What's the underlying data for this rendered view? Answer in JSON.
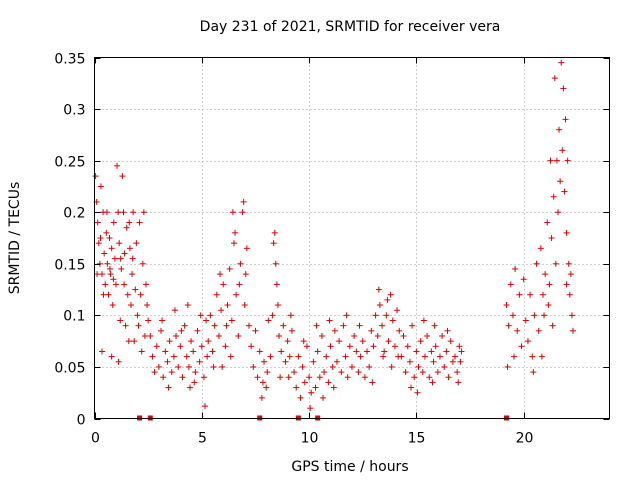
{
  "chart_data": {
    "type": "scatter",
    "title": "Day 231 of 2021, SRMTID for receiver vera",
    "xlabel": "GPS time / hours",
    "ylabel": "SRMTID / TECUs",
    "xlim": [
      0,
      24
    ],
    "ylim": [
      0,
      0.35
    ],
    "xticks": [
      0,
      5,
      10,
      15,
      20
    ],
    "xtick_labels": [
      "0",
      "5",
      "10",
      "15",
      "20"
    ],
    "yticks": [
      0,
      0.05,
      0.1,
      0.15,
      0.2,
      0.25,
      0.3,
      0.35
    ],
    "ytick_labels": [
      "0",
      "0.05",
      "0.1",
      "0.15",
      "0.2",
      "0.25",
      "0.3",
      "0.35"
    ],
    "grid": true,
    "marker": "+",
    "color": "#e00000",
    "series": [
      {
        "name": "SRMTID",
        "points": [
          [
            0.05,
            0.235
          ],
          [
            0.1,
            0.21
          ],
          [
            0.15,
            0.19
          ],
          [
            0.2,
            0.17
          ],
          [
            0.25,
            0.15
          ],
          [
            0.3,
            0.225
          ],
          [
            0.35,
            0.14
          ],
          [
            0.4,
            0.2
          ],
          [
            0.45,
            0.16
          ],
          [
            0.5,
            0.13
          ],
          [
            0.55,
            0.18
          ],
          [
            0.6,
            0.15
          ],
          [
            0.65,
            0.12
          ],
          [
            0.7,
            0.175
          ],
          [
            0.75,
            0.14
          ],
          [
            0.8,
            0.165
          ],
          [
            0.85,
            0.11
          ],
          [
            0.9,
            0.19
          ],
          [
            0.95,
            0.155
          ],
          [
            1.0,
            0.13
          ],
          [
            1.05,
            0.245
          ],
          [
            1.1,
            0.2
          ],
          [
            1.15,
            0.17
          ],
          [
            1.2,
            0.095
          ],
          [
            1.25,
            0.145
          ],
          [
            1.3,
            0.235
          ],
          [
            1.35,
            0.2
          ],
          [
            1.4,
            0.16
          ],
          [
            1.45,
            0.09
          ],
          [
            1.5,
            0.185
          ],
          [
            1.55,
            0.12
          ],
          [
            1.6,
            0.075
          ],
          [
            1.65,
            0.165
          ],
          [
            1.7,
            0.11
          ],
          [
            1.75,
            0.14
          ],
          [
            1.8,
            0.2
          ],
          [
            1.85,
            0.075
          ],
          [
            1.9,
            0.125
          ],
          [
            1.95,
            0.17
          ],
          [
            2.0,
            0.1
          ],
          [
            2.05,
            0.09
          ],
          [
            2.1,
            0.19
          ],
          [
            2.15,
            0.12
          ],
          [
            2.2,
            0.065
          ],
          [
            2.25,
            0.15
          ],
          [
            2.3,
            0.2
          ],
          [
            2.35,
            0.08
          ],
          [
            2.4,
            0.13
          ],
          [
            2.45,
            0.11
          ],
          [
            2.5,
            0.095
          ],
          [
            0.12,
            0.14
          ],
          [
            0.28,
            0.175
          ],
          [
            0.42,
            0.12
          ],
          [
            0.58,
            0.2
          ],
          [
            0.72,
            0.145
          ],
          [
            0.88,
            0.135
          ],
          [
            1.22,
            0.155
          ],
          [
            1.38,
            0.13
          ],
          [
            1.62,
            0.19
          ],
          [
            1.78,
            0.155
          ],
          [
            0.35,
            0.065
          ],
          [
            0.8,
            0.06
          ],
          [
            1.12,
            0.055
          ],
          [
            2.6,
            0.08
          ],
          [
            2.7,
            0.06
          ],
          [
            2.8,
            0.045
          ],
          [
            2.9,
            0.07
          ],
          [
            3.0,
            0.05
          ],
          [
            3.1,
            0.085
          ],
          [
            3.2,
            0.04
          ],
          [
            3.3,
            0.065
          ],
          [
            3.4,
            0.055
          ],
          [
            3.5,
            0.075
          ],
          [
            3.6,
            0.045
          ],
          [
            3.7,
            0.06
          ],
          [
            3.8,
            0.08
          ],
          [
            3.9,
            0.05
          ],
          [
            4.0,
            0.07
          ],
          [
            4.1,
            0.04
          ],
          [
            4.2,
            0.09
          ],
          [
            4.3,
            0.06
          ],
          [
            4.4,
            0.05
          ],
          [
            4.5,
            0.075
          ],
          [
            4.6,
            0.065
          ],
          [
            4.7,
            0.045
          ],
          [
            4.8,
            0.085
          ],
          [
            4.9,
            0.055
          ],
          [
            5.0,
            0.07
          ],
          [
            5.1,
            0.04
          ],
          [
            5.2,
            0.095
          ],
          [
            3.15,
            0.095
          ],
          [
            3.45,
            0.03
          ],
          [
            3.75,
            0.105
          ],
          [
            4.05,
            0.085
          ],
          [
            4.35,
            0.11
          ],
          [
            4.65,
            0.035
          ],
          [
            4.95,
            0.1
          ],
          [
            5.25,
            0.06
          ],
          [
            5.15,
            0.012
          ],
          [
            4.45,
            0.03
          ],
          [
            5.3,
            0.075
          ],
          [
            5.4,
            0.1
          ],
          [
            5.5,
            0.065
          ],
          [
            5.6,
            0.09
          ],
          [
            5.7,
            0.12
          ],
          [
            5.8,
            0.08
          ],
          [
            5.9,
            0.105
          ],
          [
            6.0,
            0.13
          ],
          [
            6.1,
            0.07
          ],
          [
            6.2,
            0.11
          ],
          [
            6.3,
            0.145
          ],
          [
            6.4,
            0.095
          ],
          [
            6.5,
            0.17
          ],
          [
            6.6,
            0.12
          ],
          [
            6.7,
            0.08
          ],
          [
            6.8,
            0.15
          ],
          [
            6.9,
            0.2
          ],
          [
            7.0,
            0.11
          ],
          [
            7.1,
            0.165
          ],
          [
            7.2,
            0.09
          ],
          [
            6.45,
            0.2
          ],
          [
            6.55,
            0.18
          ],
          [
            6.75,
            0.13
          ],
          [
            6.95,
            0.21
          ],
          [
            7.05,
            0.14
          ],
          [
            6.15,
            0.09
          ],
          [
            5.85,
            0.14
          ],
          [
            5.55,
            0.05
          ],
          [
            5.95,
            0.05
          ],
          [
            6.35,
            0.06
          ],
          [
            7.3,
            0.07
          ],
          [
            7.4,
            0.05
          ],
          [
            7.5,
            0.085
          ],
          [
            7.6,
            0.04
          ],
          [
            7.7,
            0.065
          ],
          [
            7.8,
            0.02
          ],
          [
            7.9,
            0.055
          ],
          [
            8.0,
            0.03
          ],
          [
            8.1,
            0.095
          ],
          [
            8.2,
            0.06
          ],
          [
            8.3,
            0.1
          ],
          [
            8.4,
            0.18
          ],
          [
            8.5,
            0.13
          ],
          [
            8.6,
            0.08
          ],
          [
            8.7,
            0.065
          ],
          [
            8.8,
            0.09
          ],
          [
            8.9,
            0.055
          ],
          [
            9.0,
            0.075
          ],
          [
            9.1,
            0.06
          ],
          [
            9.2,
            0.085
          ],
          [
            8.35,
            0.17
          ],
          [
            8.45,
            0.15
          ],
          [
            8.55,
            0.11
          ],
          [
            7.85,
            0.035
          ],
          [
            8.05,
            0.045
          ],
          [
            9.05,
            0.04
          ],
          [
            9.15,
            0.1
          ],
          [
            8.65,
            0.04
          ],
          [
            9.3,
            0.045
          ],
          [
            9.4,
            0.03
          ],
          [
            9.5,
            0.06
          ],
          [
            9.6,
            0.02
          ],
          [
            9.7,
            0.05
          ],
          [
            9.8,
            0.035
          ],
          [
            9.9,
            0.07
          ],
          [
            10.0,
            0.04
          ],
          [
            10.1,
            0.025
          ],
          [
            10.2,
            0.055
          ],
          [
            10.3,
            0.03
          ],
          [
            10.4,
            0.065
          ],
          [
            10.5,
            0.04
          ],
          [
            10.6,
            0.08
          ],
          [
            10.7,
            0.045
          ],
          [
            10.8,
            0.06
          ],
          [
            10.9,
            0.035
          ],
          [
            11.0,
            0.07
          ],
          [
            11.1,
            0.05
          ],
          [
            11.2,
            0.085
          ],
          [
            9.75,
            0.075
          ],
          [
            10.05,
            0.01
          ],
          [
            10.35,
            0.09
          ],
          [
            10.65,
            0.02
          ],
          [
            10.95,
            0.095
          ],
          [
            11.15,
            0.03
          ],
          [
            11.3,
            0.055
          ],
          [
            11.4,
            0.075
          ],
          [
            11.5,
            0.045
          ],
          [
            11.6,
            0.09
          ],
          [
            11.7,
            0.06
          ],
          [
            11.8,
            0.04
          ],
          [
            11.9,
            0.07
          ],
          [
            12.0,
            0.05
          ],
          [
            12.1,
            0.08
          ],
          [
            12.2,
            0.065
          ],
          [
            12.3,
            0.045
          ],
          [
            12.4,
            0.06
          ],
          [
            12.5,
            0.075
          ],
          [
            12.6,
            0.04
          ],
          [
            12.7,
            0.065
          ],
          [
            12.8,
            0.05
          ],
          [
            12.9,
            0.085
          ],
          [
            13.0,
            0.07
          ],
          [
            13.1,
            0.1
          ],
          [
            13.2,
            0.08
          ],
          [
            13.3,
            0.11
          ],
          [
            13.4,
            0.09
          ],
          [
            13.5,
            0.065
          ],
          [
            13.6,
            0.1
          ],
          [
            13.7,
            0.075
          ],
          [
            13.8,
            0.12
          ],
          [
            13.9,
            0.095
          ],
          [
            14.0,
            0.07
          ],
          [
            14.1,
            0.105
          ],
          [
            14.2,
            0.085
          ],
          [
            13.25,
            0.125
          ],
          [
            13.45,
            0.06
          ],
          [
            13.65,
            0.115
          ],
          [
            13.85,
            0.05
          ],
          [
            14.15,
            0.06
          ],
          [
            12.35,
            0.09
          ],
          [
            11.75,
            0.1
          ],
          [
            12.95,
            0.035
          ],
          [
            14.3,
            0.06
          ],
          [
            14.4,
            0.08
          ],
          [
            14.5,
            0.045
          ],
          [
            14.6,
            0.07
          ],
          [
            14.7,
            0.055
          ],
          [
            14.8,
            0.09
          ],
          [
            14.9,
            0.04
          ],
          [
            15.0,
            0.065
          ],
          [
            15.1,
            0.05
          ],
          [
            15.2,
            0.075
          ],
          [
            15.3,
            0.045
          ],
          [
            15.4,
            0.06
          ],
          [
            15.5,
            0.08
          ],
          [
            15.6,
            0.04
          ],
          [
            15.7,
            0.065
          ],
          [
            15.8,
            0.055
          ],
          [
            15.9,
            0.07
          ],
          [
            16.0,
            0.045
          ],
          [
            16.1,
            0.06
          ],
          [
            16.2,
            0.08
          ],
          [
            16.3,
            0.05
          ],
          [
            16.4,
            0.065
          ],
          [
            16.5,
            0.04
          ],
          [
            16.6,
            0.075
          ],
          [
            16.7,
            0.055
          ],
          [
            16.8,
            0.06
          ],
          [
            16.9,
            0.045
          ],
          [
            17.0,
            0.07
          ],
          [
            17.05,
            0.055
          ],
          [
            17.1,
            0.065
          ],
          [
            14.75,
            0.03
          ],
          [
            15.05,
            0.025
          ],
          [
            15.35,
            0.095
          ],
          [
            15.85,
            0.09
          ],
          [
            16.45,
            0.085
          ],
          [
            16.95,
            0.035
          ],
          [
            15.75,
            0.035
          ],
          [
            19.2,
            0.11
          ],
          [
            19.3,
            0.09
          ],
          [
            19.4,
            0.13
          ],
          [
            19.5,
            0.1
          ],
          [
            19.6,
            0.145
          ],
          [
            19.7,
            0.085
          ],
          [
            19.8,
            0.12
          ],
          [
            19.9,
            0.07
          ],
          [
            20.0,
            0.135
          ],
          [
            20.1,
            0.095
          ],
          [
            20.2,
            0.075
          ],
          [
            20.3,
            0.12
          ],
          [
            20.4,
            0.06
          ],
          [
            20.5,
            0.1
          ],
          [
            20.6,
            0.15
          ],
          [
            20.7,
            0.085
          ],
          [
            20.8,
            0.165
          ],
          [
            20.9,
            0.12
          ],
          [
            21.0,
            0.14
          ],
          [
            21.1,
            0.19
          ],
          [
            21.2,
            0.13
          ],
          [
            21.3,
            0.175
          ],
          [
            21.4,
            0.215
          ],
          [
            21.5,
            0.15
          ],
          [
            21.55,
            0.25
          ],
          [
            21.6,
            0.2
          ],
          [
            21.65,
            0.28
          ],
          [
            21.7,
            0.23
          ],
          [
            21.75,
            0.345
          ],
          [
            21.8,
            0.26
          ],
          [
            21.85,
            0.32
          ],
          [
            21.9,
            0.22
          ],
          [
            21.95,
            0.29
          ],
          [
            22.0,
            0.18
          ],
          [
            22.05,
            0.25
          ],
          [
            22.1,
            0.15
          ],
          [
            22.15,
            0.12
          ],
          [
            22.2,
            0.14
          ],
          [
            22.25,
            0.1
          ],
          [
            22.3,
            0.085
          ],
          [
            19.25,
            0.05
          ],
          [
            19.55,
            0.06
          ],
          [
            20.45,
            0.045
          ],
          [
            20.85,
            0.06
          ],
          [
            21.35,
            0.09
          ],
          [
            21.45,
            0.33
          ],
          [
            21.25,
            0.25
          ],
          [
            20.95,
            0.1
          ],
          [
            21.15,
            0.11
          ],
          [
            22.0,
            0.13
          ]
        ]
      }
    ],
    "zero_markers": [
      2.1,
      2.6,
      7.7,
      9.5,
      10.4,
      19.2
    ]
  }
}
